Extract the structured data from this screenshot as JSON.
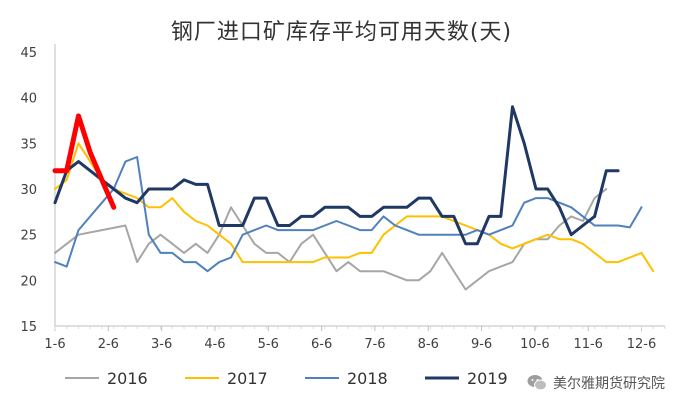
{
  "chart_data": {
    "type": "line",
    "title": "钢厂进口矿库存平均可用天数(天)",
    "xlabel": "",
    "ylabel": "",
    "ylim": [
      15,
      45
    ],
    "yticks": [
      15,
      20,
      25,
      30,
      35,
      40,
      45
    ],
    "x_tick_labels": [
      "1-6",
      "2-6",
      "3-6",
      "4-6",
      "5-6",
      "6-6",
      "7-6",
      "8-6",
      "9-6",
      "10-6",
      "11-6",
      "12-6"
    ],
    "x_range_weeks": [
      0,
      52
    ],
    "series": [
      {
        "name": "2016",
        "color": "#A6A6A6",
        "width": 2,
        "x": [
          0,
          2,
          4,
          6,
          7,
          8,
          9,
          10,
          11,
          12,
          13,
          14,
          15,
          16,
          17,
          18,
          19,
          20,
          21,
          22,
          23,
          24,
          25,
          26,
          27,
          28,
          29,
          30,
          31,
          32,
          33,
          34,
          35,
          36,
          37,
          38,
          39,
          40,
          41,
          42,
          43,
          44,
          45,
          46,
          47
        ],
        "values": [
          23,
          25,
          25.5,
          26,
          22,
          24,
          25,
          24,
          23,
          24,
          23,
          25,
          28,
          26,
          24,
          23,
          23,
          22,
          24,
          25,
          23,
          21,
          22,
          21,
          21,
          21,
          20.5,
          20,
          20,
          21,
          23,
          21,
          19,
          20,
          21,
          21.5,
          22,
          24,
          24.5,
          24.5,
          26,
          27,
          26.5,
          29,
          30
        ]
      },
      {
        "name": "2017",
        "color": "#FFC000",
        "width": 2,
        "x": [
          0,
          1,
          2,
          3,
          4,
          5,
          6,
          7,
          8,
          9,
          10,
          11,
          12,
          13,
          14,
          15,
          16,
          17,
          18,
          19,
          20,
          21,
          22,
          23,
          24,
          25,
          26,
          27,
          28,
          29,
          30,
          31,
          32,
          33,
          34,
          35,
          36,
          37,
          38,
          39,
          40,
          41,
          42,
          43,
          44,
          45,
          46,
          47,
          48,
          49,
          50,
          51
        ],
        "values": [
          30,
          31,
          35,
          33,
          31,
          30,
          29.5,
          29,
          28,
          28,
          29,
          27.5,
          26.5,
          26,
          25,
          24,
          22,
          22,
          22,
          22,
          22,
          22,
          22,
          22.5,
          22.5,
          22.5,
          23,
          23,
          25,
          26,
          27,
          27,
          27,
          27,
          26.5,
          26,
          25.5,
          25,
          24,
          23.5,
          24,
          24.5,
          25,
          24.5,
          24.5,
          24,
          23,
          22,
          22,
          22.5,
          23,
          21
        ]
      },
      {
        "name": "2018",
        "color": "#4F81BD",
        "width": 2,
        "x": [
          0,
          1,
          2,
          3,
          4,
          5,
          6,
          7,
          8,
          9,
          10,
          11,
          12,
          13,
          14,
          15,
          16,
          17,
          18,
          19,
          20,
          21,
          22,
          23,
          24,
          25,
          26,
          27,
          28,
          29,
          30,
          31,
          32,
          33,
          34,
          35,
          36,
          37,
          38,
          39,
          40,
          41,
          42,
          43,
          44,
          45,
          46,
          47,
          48,
          49,
          50
        ],
        "values": [
          22,
          21.5,
          25.5,
          27,
          28.5,
          30,
          33,
          33.5,
          25,
          23,
          23,
          22,
          22,
          21,
          22,
          22.5,
          25,
          25.5,
          26,
          25.5,
          25.5,
          25.5,
          25.5,
          26,
          26.5,
          26,
          25.5,
          25.5,
          27,
          26,
          25.5,
          25,
          25,
          25,
          25,
          25,
          25.5,
          25,
          25.5,
          26,
          28.5,
          29,
          29,
          28.5,
          28,
          27,
          26,
          26,
          26,
          25.8,
          28
        ]
      },
      {
        "name": "2019",
        "color": "#1F3864",
        "width": 3,
        "x": [
          0,
          1,
          2,
          3,
          4,
          5,
          6,
          7,
          8,
          9,
          10,
          11,
          12,
          13,
          14,
          15,
          16,
          17,
          18,
          19,
          20,
          21,
          22,
          23,
          24,
          25,
          26,
          27,
          28,
          29,
          30,
          31,
          32,
          33,
          34,
          35,
          36,
          37,
          38,
          39,
          40,
          41,
          42,
          43,
          44,
          45,
          46
        ],
        "values": [
          28.5,
          32,
          33,
          32,
          31,
          30,
          29,
          28.5,
          30,
          30,
          30,
          31,
          30.5,
          30.5,
          26,
          26,
          26,
          29,
          29,
          26,
          26,
          27,
          27,
          28,
          28,
          28,
          27,
          27,
          28,
          28,
          28,
          29,
          29,
          27,
          27,
          24,
          24,
          27,
          27,
          39,
          35,
          30,
          30,
          28,
          25,
          26,
          27
        ]
      },
      {
        "name": "2019-highlight",
        "color": "#FF0000",
        "width": 5,
        "x": [
          0,
          1,
          2,
          3,
          4,
          5
        ],
        "values": [
          32,
          32,
          38,
          34,
          31,
          28
        ]
      },
      {
        "name": "2019-tail",
        "color": "#1F3864",
        "width": 3,
        "x": [
          46,
          47,
          48
        ],
        "values": [
          27,
          32,
          32
        ]
      }
    ],
    "legend": [
      "2016",
      "2017",
      "2018",
      "2019"
    ],
    "legend_position": "bottom",
    "grid": false
  },
  "watermark": {
    "text": "美尔雅期货研究院",
    "icon": "wechat-icon"
  }
}
